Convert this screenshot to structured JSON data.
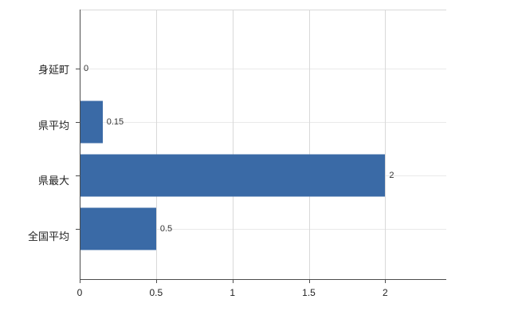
{
  "chart_data": {
    "type": "bar",
    "orientation": "horizontal",
    "title": "",
    "xlabel": "",
    "ylabel": "",
    "categories": [
      "身延町",
      "県平均",
      "県最大",
      "全国平均"
    ],
    "values": [
      0,
      0.15,
      2,
      0.5
    ],
    "value_labels": [
      "0",
      "0.15",
      "2",
      "0.5"
    ],
    "x_ticks": [
      0,
      0.5,
      1,
      1.5,
      2
    ],
    "x_tick_labels": [
      "0",
      "0.5",
      "1",
      "1.5",
      "2"
    ],
    "xlim": [
      0,
      2.4
    ],
    "grid": true,
    "legend": "none",
    "bar_color": "#3a6aa6",
    "grid_color": "#d9d9d9",
    "axis_color": "#4d4d4d",
    "text_color": "#222222"
  }
}
